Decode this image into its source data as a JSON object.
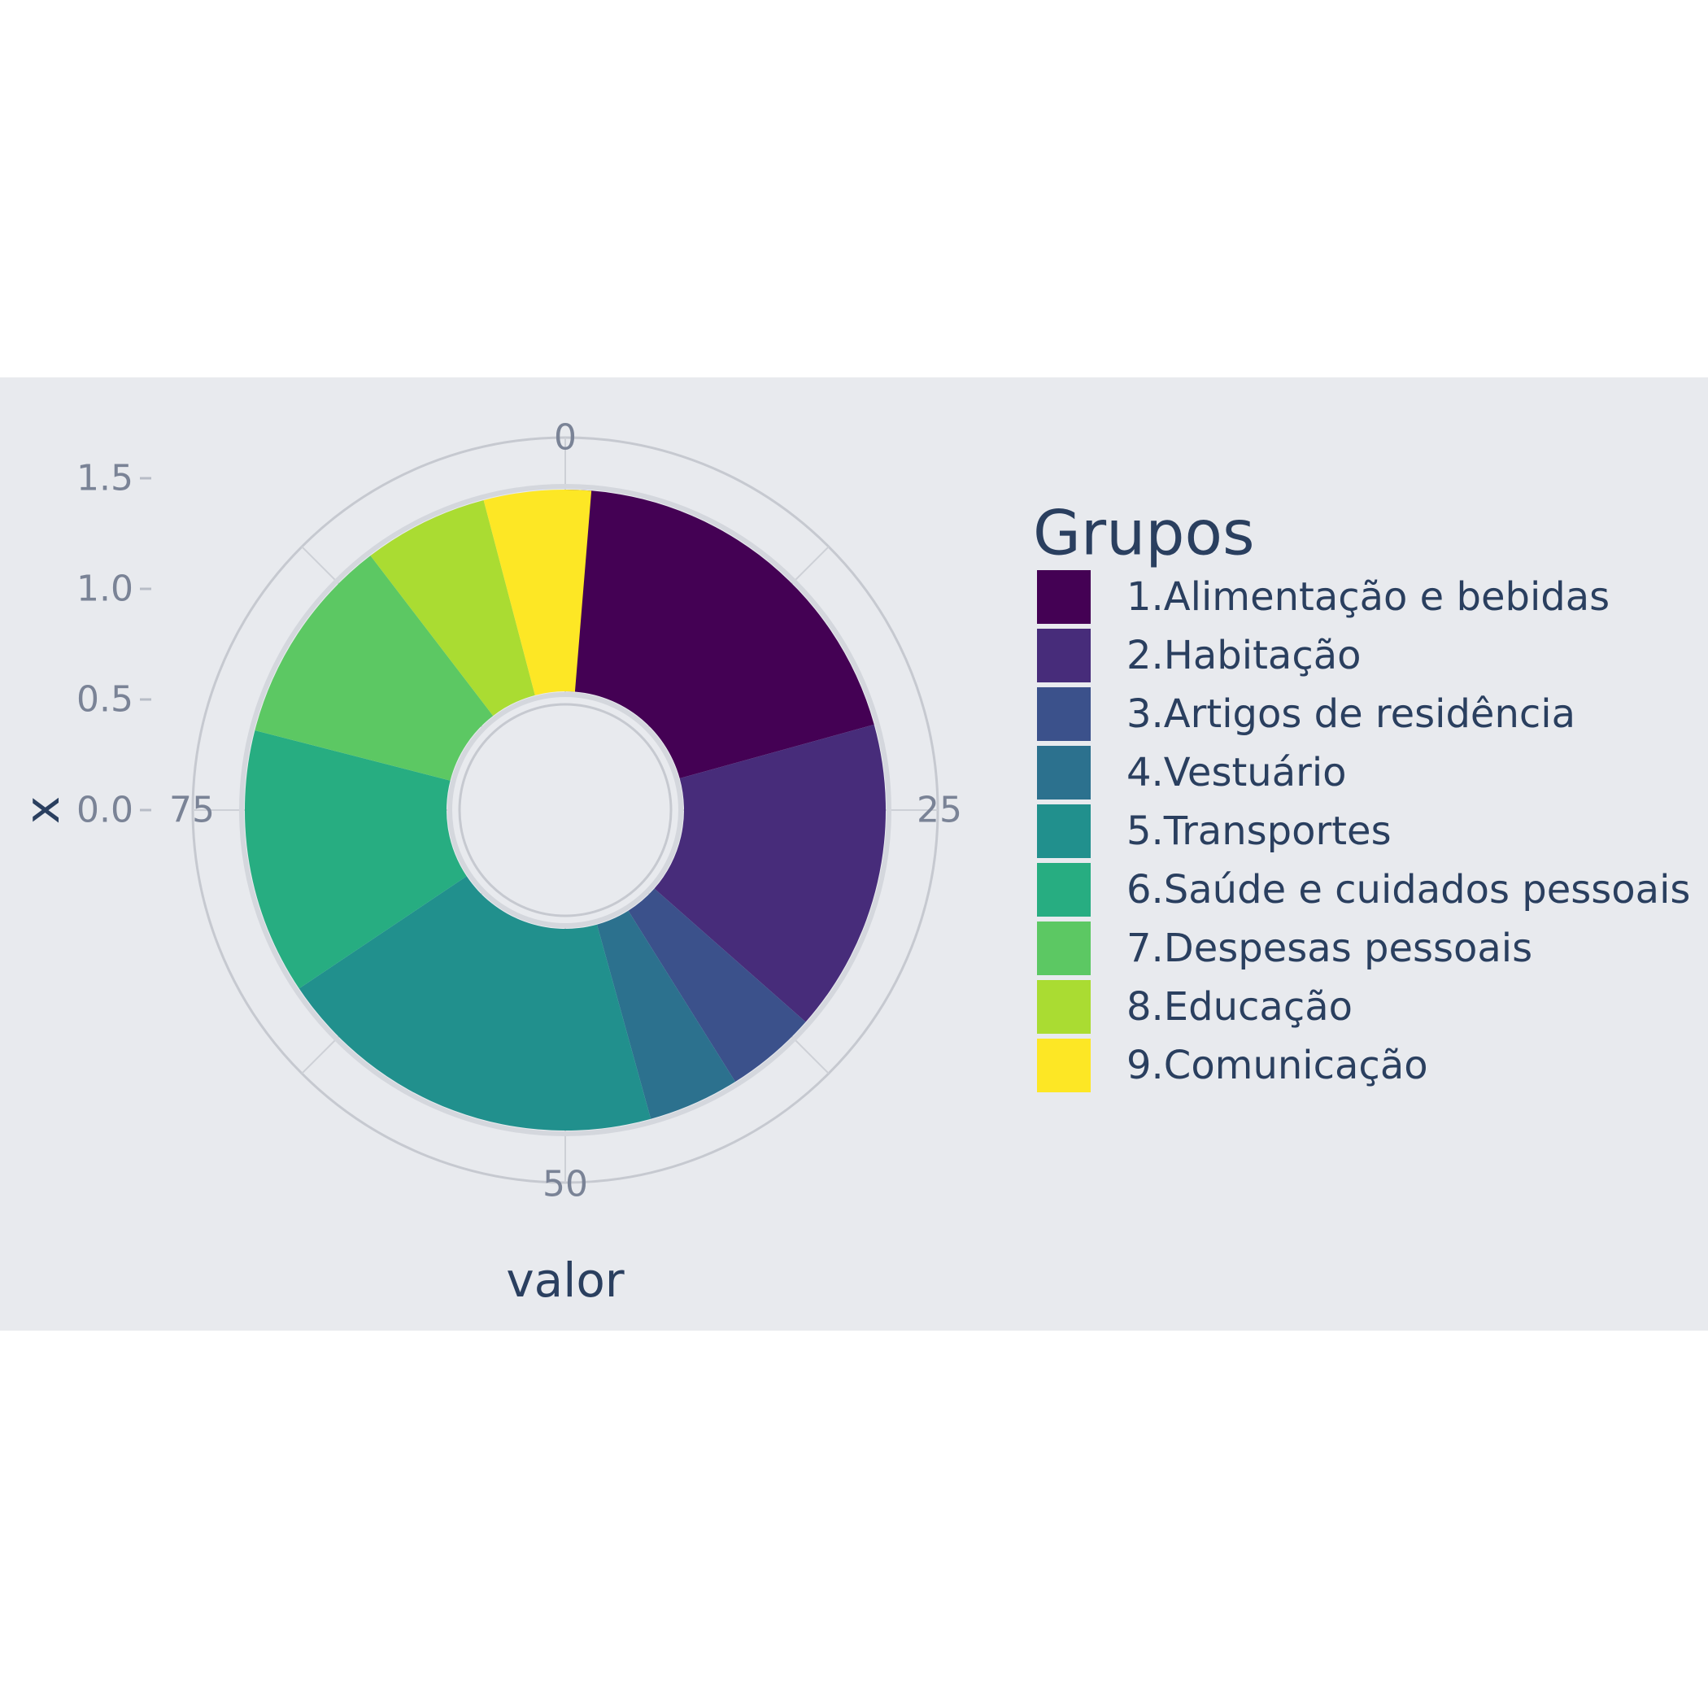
{
  "chart_data": {
    "type": "pie",
    "xlabel": "valor",
    "ylabel": "x",
    "y_ticks": [
      "0.0",
      "0.5",
      "1.0",
      "1.5"
    ],
    "angular_ticks": [
      "0",
      "25",
      "50",
      "75"
    ],
    "angular_range": [
      0,
      100
    ],
    "direction": "clockwise",
    "legend_title": "Grupos",
    "legend_position": "right",
    "background": "#e8eaee",
    "categories": [
      "1.Alimentação e bebidas",
      "2.Habitação",
      "3.Artigos de residência",
      "4.Vestuário",
      "5.Transportes",
      "6.Saúde e cuidados pessoais",
      "7.Despesas pessoais",
      "8.Educação",
      "9.Comunicação"
    ],
    "values": [
      20.7,
      15.8,
      4.6,
      4.6,
      19.9,
      13.4,
      10.6,
      6.3,
      5.4
    ],
    "colors": [
      "#440154",
      "#472c7a",
      "#3b518b",
      "#2c718e",
      "#21908d",
      "#27ad81",
      "#5cc863",
      "#aadc32",
      "#fde725"
    ]
  }
}
